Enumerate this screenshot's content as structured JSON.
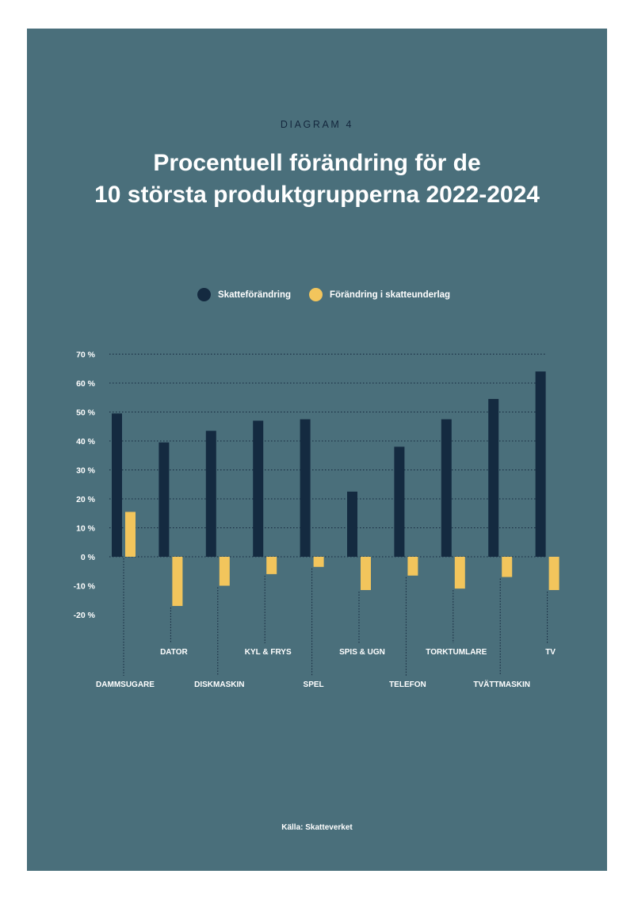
{
  "header": {
    "kicker": "DIAGRAM 4",
    "title_line1": "Procentuell förändring för de",
    "title_line2": "10 största produktgrupperna 2022-2024"
  },
  "footer": {
    "source": "Källa: Skatteverket"
  },
  "colors": {
    "panel": "#4a6f7b",
    "series1": "#142a40",
    "series2": "#f2c55c",
    "text": "#ffffff"
  },
  "chart_data": {
    "type": "bar",
    "title": "Procentuell förändring för de 10 största produktgrupperna 2022-2024",
    "categories": [
      "DAMMSUGARE",
      "DATOR",
      "DISKMASKIN",
      "KYL & FRYS",
      "SPEL",
      "SPIS & UGN",
      "TELEFON",
      "TORKTUMLARE",
      "TVÄTTMASKIN",
      "TV"
    ],
    "series": [
      {
        "name": "Skatteförändring",
        "values": [
          49.5,
          39.5,
          43.5,
          47,
          47.5,
          22.5,
          38,
          47.5,
          54.5,
          64
        ]
      },
      {
        "name": "Förändring i skatteunderlag",
        "values": [
          15.5,
          -17,
          -10,
          -6,
          -3.5,
          -11.5,
          -6.5,
          -11,
          -7,
          -11.5
        ]
      }
    ],
    "y_ticks": [
      "70 %",
      "60 %",
      "50 %",
      "40 %",
      "30 %",
      "20 %",
      "10 %",
      "0 %",
      "-10 %",
      "-20 %"
    ],
    "ylim": [
      -20,
      70
    ],
    "grid": "dotted horizontal lines at 10-point steps from 0 to 70",
    "legend_position": "top-center",
    "xlabel": "",
    "ylabel": ""
  }
}
